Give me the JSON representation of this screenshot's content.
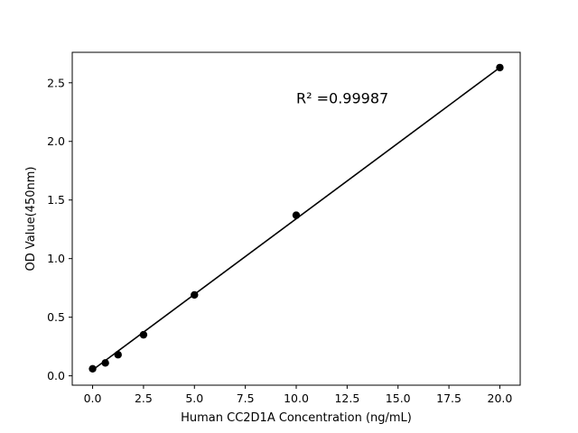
{
  "chart_data": {
    "type": "scatter",
    "title": "",
    "xlabel": "Human CC2D1A Concentration (ng/mL)",
    "ylabel": "OD Value(450nm)",
    "xlim": [
      -1.0,
      21.0
    ],
    "ylim": [
      -0.08,
      2.76
    ],
    "xticks": [
      0.0,
      2.5,
      5.0,
      7.5,
      10.0,
      12.5,
      15.0,
      17.5,
      20.0
    ],
    "xtick_labels": [
      "0.0",
      "2.5",
      "5.0",
      "7.5",
      "10.0",
      "12.5",
      "15.0",
      "17.5",
      "20.0"
    ],
    "yticks": [
      0.0,
      0.5,
      1.0,
      1.5,
      2.0,
      2.5
    ],
    "ytick_labels": [
      "0.0",
      "0.5",
      "1.0",
      "1.5",
      "2.0",
      "2.5"
    ],
    "grid": false,
    "points": {
      "x": [
        0,
        0.625,
        1.25,
        2.5,
        5,
        10,
        20
      ],
      "y": [
        0.06,
        0.11,
        0.18,
        0.35,
        0.69,
        1.37,
        2.63
      ]
    },
    "fit_line": {
      "x": [
        0,
        20
      ],
      "y": [
        0.05,
        2.63
      ]
    },
    "annotation": {
      "text": "R² =0.99987",
      "x": 10.0,
      "y": 2.37
    },
    "colors": {
      "marker": "#000000",
      "line": "#000000"
    }
  }
}
